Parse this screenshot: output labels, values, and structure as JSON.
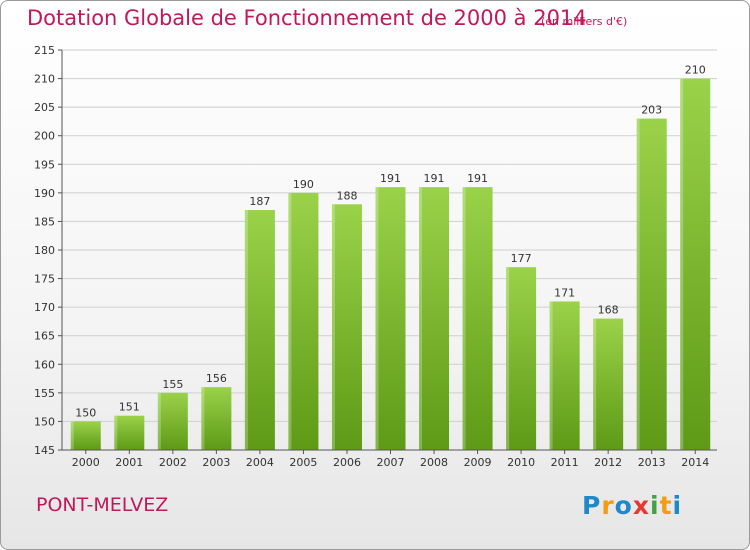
{
  "chart_data": {
    "type": "bar",
    "title": "Dotation Globale de Fonctionnement de 2000 à 2014",
    "subtitle": "(en milliers d'€)",
    "categories": [
      "2000",
      "2001",
      "2002",
      "2003",
      "2004",
      "2005",
      "2006",
      "2007",
      "2008",
      "2009",
      "2010",
      "2011",
      "2012",
      "2013",
      "2014"
    ],
    "values": [
      150,
      151,
      155,
      156,
      187,
      190,
      188,
      191,
      191,
      191,
      177,
      171,
      168,
      203,
      210
    ],
    "ylim": [
      145,
      215
    ],
    "yticks": [
      145,
      150,
      155,
      160,
      165,
      170,
      175,
      180,
      185,
      190,
      195,
      200,
      205,
      210,
      215
    ],
    "grid": true,
    "data_labels": true,
    "colors": {
      "bar_light": "#9ad24a",
      "bar_dark": "#5e9a16",
      "grid": "#cfcfcf",
      "title": "#c2185b"
    }
  },
  "footer": {
    "commune": "PONT-MELVEZ",
    "logo_text": "Proxiti"
  }
}
